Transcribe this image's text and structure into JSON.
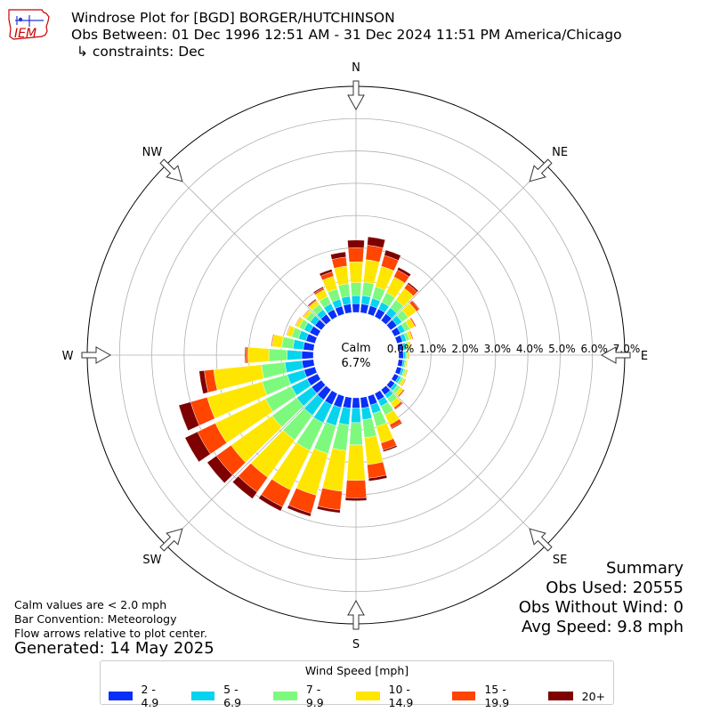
{
  "header": {
    "logo_text": "IEM",
    "title_line1": "Windrose Plot for [BGD] BORGER/HUTCHINSON",
    "title_line2": "Obs Between: 01 Dec 1996 12:51 AM - 31 Dec 2024 11:51 PM America/Chicago",
    "title_line3": "↳ constraints: Dec"
  },
  "summary": {
    "title": "Summary",
    "obs_used": "Obs Used: 20555",
    "obs_without_wind": "Obs Without Wind: 0",
    "avg_speed": "Avg Speed: 9.8 mph"
  },
  "notes": {
    "line1": "Calm values are < 2.0 mph",
    "line2": "Bar Convention: Meteorology",
    "line3": "Flow arrows relative to plot center.",
    "generated": "Generated: 14 May 2025"
  },
  "legend": {
    "title": "Wind Speed [mph]",
    "items": [
      {
        "label": "2 - 4.9",
        "color": "#0a2ff8"
      },
      {
        "label": "5 - 6.9",
        "color": "#06d4ee"
      },
      {
        "label": "7 - 9.9",
        "color": "#7dfa7d"
      },
      {
        "label": "10 - 14.9",
        "color": "#ffe600"
      },
      {
        "label": "15 - 19.9",
        "color": "#ff4500"
      },
      {
        "label": "20+",
        "color": "#7f0000"
      }
    ]
  },
  "chart_data": {
    "type": "windrose",
    "calm_label": "Calm",
    "calm_value": "6.7%",
    "calm_percent": 6.7,
    "radial_max": 7.0,
    "radial_ticks": [
      0,
      1,
      2,
      3,
      4,
      5,
      6,
      7
    ],
    "radial_tick_labels": [
      "0.0%",
      "1.0%",
      "2.0%",
      "3.0%",
      "4.0%",
      "5.0%",
      "6.0%",
      "7.0%"
    ],
    "directions": [
      "N",
      "NE",
      "E",
      "SE",
      "S",
      "SW",
      "W",
      "NW"
    ],
    "sector_angles_deg": [
      0,
      10,
      20,
      30,
      40,
      50,
      60,
      70,
      80,
      90,
      100,
      110,
      120,
      130,
      140,
      150,
      160,
      170,
      180,
      190,
      200,
      210,
      220,
      230,
      240,
      250,
      260,
      270,
      280,
      290,
      300,
      310,
      320,
      330,
      340,
      350
    ],
    "series": [
      {
        "name": "2 - 4.9",
        "color": "#0a2ff8",
        "values": [
          0.27,
          0.27,
          0.27,
          0.27,
          0.26,
          0.24,
          0.21,
          0.18,
          0.16,
          0.15,
          0.14,
          0.15,
          0.15,
          0.16,
          0.2,
          0.24,
          0.29,
          0.33,
          0.32,
          0.33,
          0.37,
          0.39,
          0.39,
          0.37,
          0.36,
          0.35,
          0.36,
          0.36,
          0.32,
          0.29,
          0.27,
          0.25,
          0.24,
          0.25,
          0.26,
          0.27
        ]
      },
      {
        "name": "5 - 6.9",
        "color": "#06d4ee",
        "values": [
          0.25,
          0.26,
          0.24,
          0.23,
          0.23,
          0.19,
          0.16,
          0.12,
          0.09,
          0.07,
          0.06,
          0.07,
          0.08,
          0.1,
          0.13,
          0.2,
          0.27,
          0.36,
          0.45,
          0.52,
          0.58,
          0.62,
          0.59,
          0.57,
          0.54,
          0.54,
          0.53,
          0.45,
          0.32,
          0.24,
          0.2,
          0.18,
          0.18,
          0.2,
          0.22,
          0.24
        ]
      },
      {
        "name": "7 - 9.9",
        "color": "#7dfa7d",
        "values": [
          0.4,
          0.42,
          0.37,
          0.33,
          0.3,
          0.24,
          0.16,
          0.1,
          0.07,
          0.05,
          0.04,
          0.06,
          0.08,
          0.12,
          0.18,
          0.3,
          0.42,
          0.56,
          0.69,
          0.8,
          0.9,
          0.95,
          0.94,
          0.94,
          0.89,
          0.81,
          0.73,
          0.57,
          0.35,
          0.22,
          0.17,
          0.16,
          0.2,
          0.25,
          0.33,
          0.39
        ]
      },
      {
        "name": "10 - 14.9",
        "color": "#ffe600",
        "values": [
          0.65,
          0.7,
          0.66,
          0.54,
          0.44,
          0.32,
          0.17,
          0.09,
          0.06,
          0.04,
          0.04,
          0.05,
          0.07,
          0.11,
          0.17,
          0.33,
          0.53,
          0.84,
          1.1,
          1.27,
          1.34,
          1.36,
          1.43,
          1.57,
          1.73,
          1.77,
          1.49,
          0.65,
          0.3,
          0.15,
          0.11,
          0.1,
          0.14,
          0.23,
          0.41,
          0.55
        ]
      },
      {
        "name": "15 - 19.9",
        "color": "#ff4500",
        "values": [
          0.43,
          0.45,
          0.35,
          0.24,
          0.17,
          0.1,
          0.04,
          0.03,
          0.02,
          0.02,
          0.01,
          0.02,
          0.02,
          0.04,
          0.06,
          0.12,
          0.23,
          0.42,
          0.54,
          0.58,
          0.58,
          0.58,
          0.56,
          0.56,
          0.61,
          0.53,
          0.29,
          0.06,
          0.03,
          0.02,
          0.02,
          0.02,
          0.03,
          0.06,
          0.14,
          0.28
        ]
      },
      {
        "name": "20+",
        "color": "#7f0000",
        "values": [
          0.24,
          0.26,
          0.17,
          0.09,
          0.05,
          0.02,
          0.01,
          0.0,
          0.0,
          0.0,
          0.0,
          0.0,
          0.0,
          0.01,
          0.02,
          0.03,
          0.05,
          0.09,
          0.09,
          0.09,
          0.1,
          0.14,
          0.25,
          0.35,
          0.43,
          0.38,
          0.16,
          0.03,
          0.01,
          0.01,
          0.01,
          0.01,
          0.03,
          0.04,
          0.08,
          0.16
        ]
      }
    ],
    "grid": true
  }
}
